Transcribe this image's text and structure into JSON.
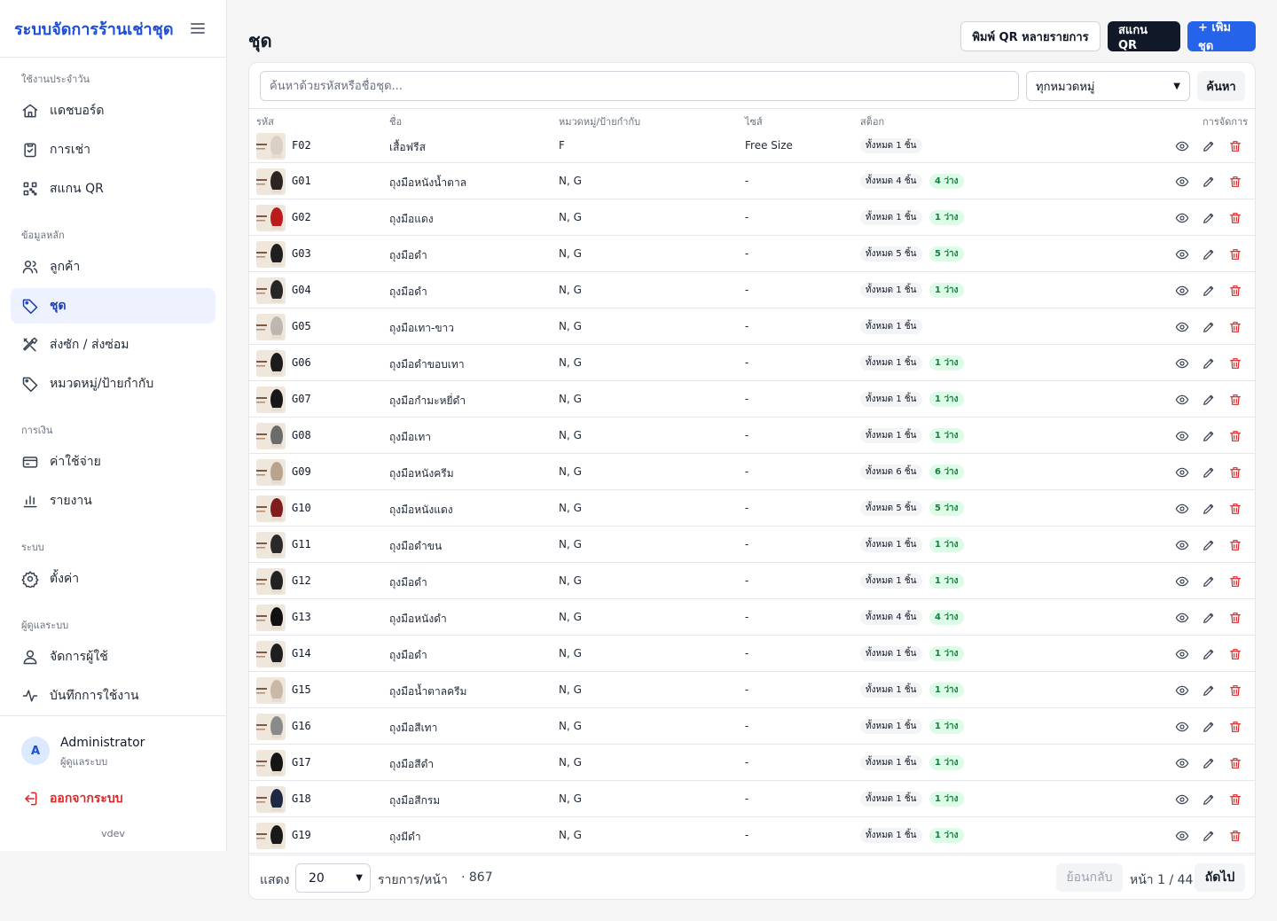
{
  "app": {
    "title": "ระบบจัดการร้านเช่าชุด",
    "version": "vdev"
  },
  "sidebar": {
    "sections": [
      {
        "label": "ใช้งานประจำวัน",
        "items": [
          {
            "label": "แดชบอร์ด",
            "icon": "home-icon"
          },
          {
            "label": "การเช่า",
            "icon": "clipboard-icon"
          },
          {
            "label": "สแกน QR",
            "icon": "qr-scan-icon"
          }
        ]
      },
      {
        "label": "ข้อมูลหลัก",
        "items": [
          {
            "label": "ลูกค้า",
            "icon": "users-icon"
          },
          {
            "label": "ชุด",
            "icon": "tag-icon",
            "active": true
          },
          {
            "label": "ส่งซัก / ส่งซ่อม",
            "icon": "tools-icon"
          },
          {
            "label": "หมวดหมู่/ป้ายกำกับ",
            "icon": "tag-icon"
          }
        ]
      },
      {
        "label": "การเงิน",
        "items": [
          {
            "label": "ค่าใช้จ่าย",
            "icon": "credit-card-icon"
          },
          {
            "label": "รายงาน",
            "icon": "bar-chart-icon"
          }
        ]
      },
      {
        "label": "ระบบ",
        "items": [
          {
            "label": "ตั้งค่า",
            "icon": "gear-icon"
          }
        ]
      },
      {
        "label": "ผู้ดูแลระบบ",
        "items": [
          {
            "label": "จัดการผู้ใช้",
            "icon": "user-icon"
          },
          {
            "label": "บันทึกการใช้งาน",
            "icon": "activity-icon"
          }
        ]
      }
    ],
    "user": {
      "initial": "A",
      "name": "Administrator",
      "role": "ผู้ดูแลระบบ"
    },
    "logout_label": "ออกจากระบบ"
  },
  "header": {
    "title": "ชุด",
    "print_qr_label": "พิมพ์ QR หลายรายการ",
    "scan_qr_label": "สแกน QR",
    "add_label": "+ เพิ่มชุด"
  },
  "filters": {
    "search_placeholder": "ค้นหาด้วยรหัสหรือชื่อชุด...",
    "category_value": "ทุกหมวดหมู่",
    "search_button": "ค้นหา"
  },
  "table": {
    "columns": {
      "code": "รหัส",
      "name": "ชื่อ",
      "category": "หมวดหมู่/ป้ายกำกับ",
      "size": "ไซส์",
      "stock": "สต็อก",
      "actions": "การจัดการ"
    },
    "rows": [
      {
        "code": "F02",
        "name": "เสื้อฟรีส",
        "category": "F",
        "size": "Free Size",
        "total": "ทั้งหมด 1 ชิ้น",
        "avail": "",
        "color": "#d9cfc4"
      },
      {
        "code": "G01",
        "name": "ถุงมือหนังน้ำตาล",
        "category": "N, G",
        "size": "-",
        "total": "ทั้งหมด 4 ชิ้น",
        "avail": "4 ว่าง",
        "color": "#2b2420"
      },
      {
        "code": "G02",
        "name": "ถุงมือแดง",
        "category": "N, G",
        "size": "-",
        "total": "ทั้งหมด 1 ชิ้น",
        "avail": "1 ว่าง",
        "color": "#b91c1c"
      },
      {
        "code": "G03",
        "name": "ถุงมือดำ",
        "category": "N, G",
        "size": "-",
        "total": "ทั้งหมด 5 ชิ้น",
        "avail": "5 ว่าง",
        "color": "#1f1f1f"
      },
      {
        "code": "G04",
        "name": "ถุงมือดำ",
        "category": "N, G",
        "size": "-",
        "total": "ทั้งหมด 1 ชิ้น",
        "avail": "1 ว่าง",
        "color": "#262626"
      },
      {
        "code": "G05",
        "name": "ถุงมือเทา-ขาว",
        "category": "N, G",
        "size": "-",
        "total": "ทั้งหมด 1 ชิ้น",
        "avail": "",
        "color": "#bdb7b0"
      },
      {
        "code": "G06",
        "name": "ถุงมือดำขอบเทา",
        "category": "N, G",
        "size": "-",
        "total": "ทั้งหมด 1 ชิ้น",
        "avail": "1 ว่าง",
        "color": "#1c1c1c"
      },
      {
        "code": "G07",
        "name": "ถุงมือกำมะหยี่ดำ",
        "category": "N, G",
        "size": "-",
        "total": "ทั้งหมด 1 ชิ้น",
        "avail": "1 ว่าง",
        "color": "#171717"
      },
      {
        "code": "G08",
        "name": "ถุงมือเทา",
        "category": "N, G",
        "size": "-",
        "total": "ทั้งหมด 1 ชิ้น",
        "avail": "1 ว่าง",
        "color": "#6b6b6b"
      },
      {
        "code": "G09",
        "name": "ถุงมือหนังครีม",
        "category": "N, G",
        "size": "-",
        "total": "ทั้งหมด 6 ชิ้น",
        "avail": "6 ว่าง",
        "color": "#b8a48e"
      },
      {
        "code": "G10",
        "name": "ถุงมือหนังแดง",
        "category": "N, G",
        "size": "-",
        "total": "ทั้งหมด 5 ชิ้น",
        "avail": "5 ว่าง",
        "color": "#7f1d1d"
      },
      {
        "code": "G11",
        "name": "ถุงมือดำขน",
        "category": "N, G",
        "size": "-",
        "total": "ทั้งหมด 1 ชิ้น",
        "avail": "1 ว่าง",
        "color": "#2a2a2a"
      },
      {
        "code": "G12",
        "name": "ถุงมือดำ",
        "category": "N, G",
        "size": "-",
        "total": "ทั้งหมด 1 ชิ้น",
        "avail": "1 ว่าง",
        "color": "#222222"
      },
      {
        "code": "G13",
        "name": "ถุงมือหนังดำ",
        "category": "N, G",
        "size": "-",
        "total": "ทั้งหมด 4 ชิ้น",
        "avail": "4 ว่าง",
        "color": "#111111"
      },
      {
        "code": "G14",
        "name": "ถุงมือดำ",
        "category": "N, G",
        "size": "-",
        "total": "ทั้งหมด 1 ชิ้น",
        "avail": "1 ว่าง",
        "color": "#1e1e1e"
      },
      {
        "code": "G15",
        "name": "ถุงมือน้ำตาลครีม",
        "category": "N, G",
        "size": "-",
        "total": "ทั้งหมด 1 ชิ้น",
        "avail": "1 ว่าง",
        "color": "#c9b8a6"
      },
      {
        "code": "G16",
        "name": "ถุงมือสีเทา",
        "category": "N, G",
        "size": "-",
        "total": "ทั้งหมด 1 ชิ้น",
        "avail": "1 ว่าง",
        "color": "#8a8a8a"
      },
      {
        "code": "G17",
        "name": "ถุงมือสีดำ",
        "category": "N, G",
        "size": "-",
        "total": "ทั้งหมด 1 ชิ้น",
        "avail": "1 ว่าง",
        "color": "#151515"
      },
      {
        "code": "G18",
        "name": "ถุงมือสีกรม",
        "category": "N, G",
        "size": "-",
        "total": "ทั้งหมด 1 ชิ้น",
        "avail": "1 ว่าง",
        "color": "#1e2a44"
      },
      {
        "code": "G19",
        "name": "ถุงมีดำ",
        "category": "N, G",
        "size": "-",
        "total": "ทั้งหมด 1 ชิ้น",
        "avail": "1 ว่าง",
        "color": "#191919"
      }
    ]
  },
  "pagination": {
    "show_label": "แสดง",
    "page_size": "20",
    "per_page_label": "รายการ/หน้า",
    "total": "· 867",
    "back_label": "ย้อนกลับ",
    "page_info": "หน้า 1 / 44",
    "next_label": "ถัดไป"
  },
  "colors": {
    "accent": "#2563eb",
    "brand": "#1d4ed8",
    "danger": "#dc2626",
    "success": "#15803d"
  }
}
